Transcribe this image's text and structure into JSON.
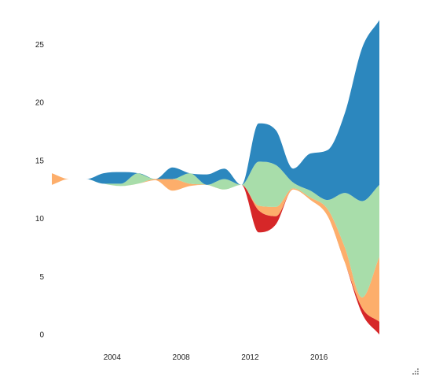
{
  "chart_data": {
    "type": "area",
    "subtype": "streamgraph",
    "x": [
      2000.5,
      2001.5,
      2002.5,
      2003.5,
      2004.5,
      2005.5,
      2006.5,
      2007.5,
      2008.5,
      2009.5,
      2010.5,
      2011.5,
      2012.5,
      2013.5,
      2014.5,
      2015.5,
      2016.5,
      2017.5,
      2018.5,
      2019.5
    ],
    "baseline": [
      12.9,
      13.4,
      13.4,
      13.0,
      12.8,
      13.0,
      13.3,
      12.4,
      12.8,
      12.9,
      12.5,
      12.9,
      8.8,
      9.5,
      12.5,
      11.6,
      10.2,
      6.2,
      1.8,
      0.0
    ],
    "series": [
      {
        "color": "#d62728",
        "values": [
          0,
          0,
          0,
          0,
          0,
          0,
          0,
          0,
          0,
          0,
          0,
          0,
          1.9,
          0.7,
          0,
          0,
          0,
          0,
          0.5,
          1.1
        ]
      },
      {
        "color": "#fdae6b",
        "values": [
          1.0,
          0,
          0,
          0,
          0,
          0,
          0.1,
          1.0,
          0.2,
          0,
          0,
          0,
          0.4,
          0.8,
          0.1,
          0.2,
          0.6,
          1.3,
          0.9,
          5.6
        ]
      },
      {
        "color": "#a8ddaa",
        "values": [
          0,
          0,
          0,
          0,
          0.2,
          0.9,
          0,
          0,
          0.9,
          0,
          0.9,
          0,
          3.8,
          3.6,
          0.5,
          0.6,
          0.8,
          4.7,
          8.3,
          6.2
        ]
      },
      {
        "color": "#2c87be",
        "values": [
          0,
          0,
          0,
          0.9,
          1.0,
          0,
          0,
          1.0,
          0,
          0.9,
          0.9,
          0,
          3.3,
          3.0,
          1.2,
          3.2,
          4.3,
          6.9,
          13.2,
          14.2
        ]
      }
    ],
    "x_ticks": [
      "2004",
      "2008",
      "2012",
      "2016"
    ],
    "y_ticks": [
      "0",
      "5",
      "10",
      "15",
      "20",
      "25"
    ],
    "xlim": [
      2000.5,
      2019.5
    ],
    "ylim": [
      0,
      27
    ],
    "grid": false,
    "legend": "none",
    "title": "",
    "xlabel": "",
    "ylabel": ""
  }
}
